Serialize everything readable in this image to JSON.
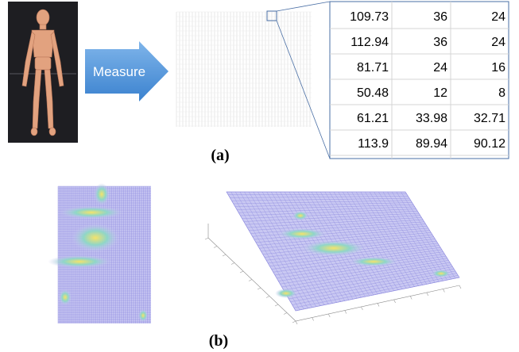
{
  "arrow_label": "Measure",
  "table": {
    "rows": [
      [
        "109.73",
        "36",
        "24"
      ],
      [
        "112.94",
        "36",
        "24"
      ],
      [
        "81.71",
        "24",
        "16"
      ],
      [
        "50.48",
        "12",
        "8"
      ],
      [
        "61.21",
        "33.98",
        "32.71"
      ],
      [
        "113.9",
        "89.94",
        "90.12"
      ]
    ]
  },
  "captions": [
    "(a)",
    "(b)"
  ]
}
